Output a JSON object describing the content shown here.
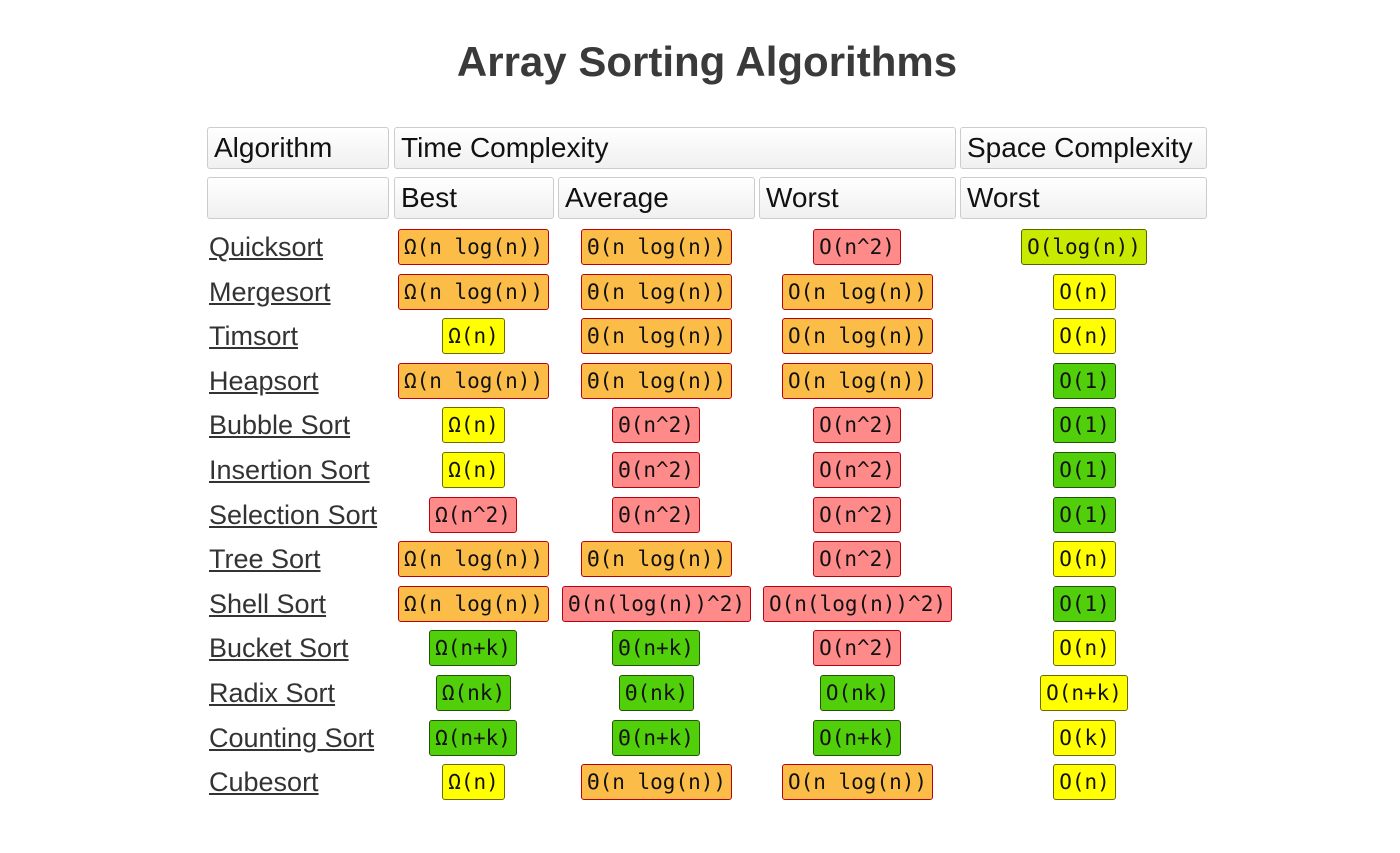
{
  "title": "Array Sorting Algorithms",
  "headers": {
    "algorithm": "Algorithm",
    "time_complexity": "Time Complexity",
    "space_complexity": "Space Complexity",
    "best": "Best",
    "average": "Average",
    "worst": "Worst",
    "space_worst": "Worst"
  },
  "colors": {
    "orange": "#fcbd48",
    "red": "#fe8a8a",
    "yellow": "#ffff00",
    "green": "#52cf0b",
    "lime": "#c8ea00",
    "border_dark_red": "#b8000f"
  },
  "rows": [
    {
      "name": "Quicksort",
      "best": {
        "text": "Ω(n log(n))",
        "color": "orange"
      },
      "average": {
        "text": "Θ(n log(n))",
        "color": "orange"
      },
      "worst": {
        "text": "O(n^2)",
        "color": "red"
      },
      "space": {
        "text": "O(log(n))",
        "color": "lime"
      }
    },
    {
      "name": "Mergesort",
      "best": {
        "text": "Ω(n log(n))",
        "color": "orange"
      },
      "average": {
        "text": "Θ(n log(n))",
        "color": "orange"
      },
      "worst": {
        "text": "O(n log(n))",
        "color": "orange"
      },
      "space": {
        "text": "O(n)",
        "color": "yellow"
      }
    },
    {
      "name": "Timsort",
      "best": {
        "text": "Ω(n)",
        "color": "yellow"
      },
      "average": {
        "text": "Θ(n log(n))",
        "color": "orange"
      },
      "worst": {
        "text": "O(n log(n))",
        "color": "orange"
      },
      "space": {
        "text": "O(n)",
        "color": "yellow"
      }
    },
    {
      "name": "Heapsort",
      "best": {
        "text": "Ω(n log(n))",
        "color": "orange"
      },
      "average": {
        "text": "Θ(n log(n))",
        "color": "orange"
      },
      "worst": {
        "text": "O(n log(n))",
        "color": "orange"
      },
      "space": {
        "text": "O(1)",
        "color": "green"
      }
    },
    {
      "name": "Bubble Sort",
      "best": {
        "text": "Ω(n)",
        "color": "yellow"
      },
      "average": {
        "text": "Θ(n^2)",
        "color": "red"
      },
      "worst": {
        "text": "O(n^2)",
        "color": "red"
      },
      "space": {
        "text": "O(1)",
        "color": "green"
      }
    },
    {
      "name": "Insertion Sort",
      "best": {
        "text": "Ω(n)",
        "color": "yellow"
      },
      "average": {
        "text": "Θ(n^2)",
        "color": "red"
      },
      "worst": {
        "text": "O(n^2)",
        "color": "red"
      },
      "space": {
        "text": "O(1)",
        "color": "green"
      }
    },
    {
      "name": "Selection Sort",
      "best": {
        "text": "Ω(n^2)",
        "color": "red"
      },
      "average": {
        "text": "Θ(n^2)",
        "color": "red"
      },
      "worst": {
        "text": "O(n^2)",
        "color": "red"
      },
      "space": {
        "text": "O(1)",
        "color": "green"
      }
    },
    {
      "name": "Tree Sort",
      "best": {
        "text": "Ω(n log(n))",
        "color": "orange"
      },
      "average": {
        "text": "Θ(n log(n))",
        "color": "orange"
      },
      "worst": {
        "text": "O(n^2)",
        "color": "red"
      },
      "space": {
        "text": "O(n)",
        "color": "yellow"
      }
    },
    {
      "name": "Shell Sort",
      "best": {
        "text": "Ω(n log(n))",
        "color": "orange"
      },
      "average": {
        "text": "Θ(n(log(n))^2)",
        "color": "red"
      },
      "worst": {
        "text": "O(n(log(n))^2)",
        "color": "red"
      },
      "space": {
        "text": "O(1)",
        "color": "green"
      }
    },
    {
      "name": "Bucket Sort",
      "best": {
        "text": "Ω(n+k)",
        "color": "green"
      },
      "average": {
        "text": "Θ(n+k)",
        "color": "green"
      },
      "worst": {
        "text": "O(n^2)",
        "color": "red"
      },
      "space": {
        "text": "O(n)",
        "color": "yellow"
      }
    },
    {
      "name": "Radix Sort",
      "best": {
        "text": "Ω(nk)",
        "color": "green"
      },
      "average": {
        "text": "Θ(nk)",
        "color": "green"
      },
      "worst": {
        "text": "O(nk)",
        "color": "green"
      },
      "space": {
        "text": "O(n+k)",
        "color": "yellow"
      }
    },
    {
      "name": "Counting Sort",
      "best": {
        "text": "Ω(n+k)",
        "color": "green"
      },
      "average": {
        "text": "Θ(n+k)",
        "color": "green"
      },
      "worst": {
        "text": "O(n+k)",
        "color": "green"
      },
      "space": {
        "text": "O(k)",
        "color": "yellow"
      }
    },
    {
      "name": "Cubesort",
      "best": {
        "text": "Ω(n)",
        "color": "yellow"
      },
      "average": {
        "text": "Θ(n log(n))",
        "color": "orange"
      },
      "worst": {
        "text": "O(n log(n))",
        "color": "orange"
      },
      "space": {
        "text": "O(n)",
        "color": "yellow"
      }
    }
  ]
}
